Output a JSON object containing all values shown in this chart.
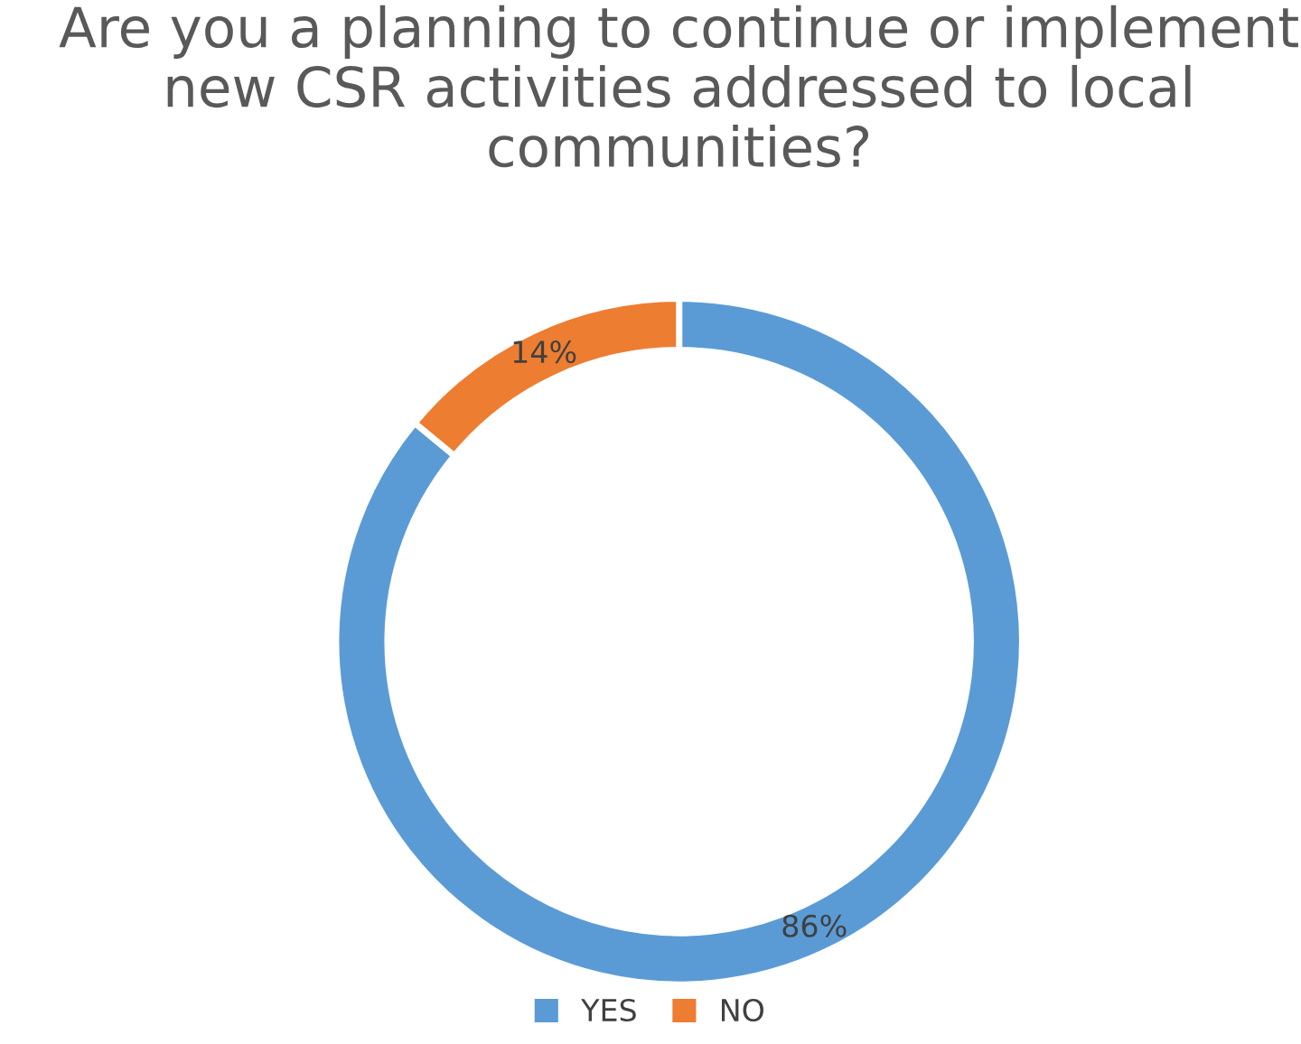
{
  "chart_data": {
    "type": "donut",
    "title": "Are you a planning to continue or implement new CSR activities addressed to local communities?",
    "categories": [
      "YES",
      "NO"
    ],
    "values": [
      86,
      14
    ],
    "colors": [
      "#5b9bd5",
      "#ed7d31"
    ],
    "value_labels": [
      "86%",
      "14%"
    ],
    "legend": "bottom"
  }
}
